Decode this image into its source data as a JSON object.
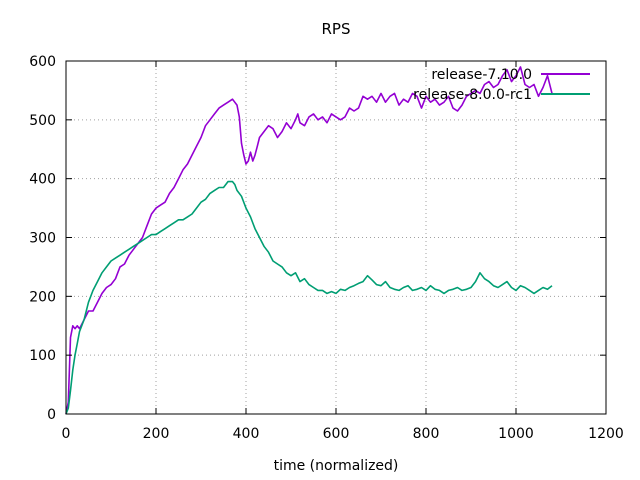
{
  "chart_data": {
    "type": "line",
    "title": "RPS",
    "xlabel": "time (normalized)",
    "ylabel": "",
    "xlim": [
      0,
      1200
    ],
    "ylim": [
      0,
      600
    ],
    "xticks": [
      0,
      200,
      400,
      600,
      800,
      1000,
      1200
    ],
    "yticks": [
      0,
      100,
      200,
      300,
      400,
      500,
      600
    ],
    "grid": true,
    "legend_position": "top-right",
    "series": [
      {
        "name": "release-7.10.0",
        "color": "#9400d3",
        "points": [
          [
            0,
            0
          ],
          [
            5,
            20
          ],
          [
            10,
            130
          ],
          [
            15,
            150
          ],
          [
            20,
            145
          ],
          [
            25,
            150
          ],
          [
            30,
            145
          ],
          [
            40,
            160
          ],
          [
            50,
            175
          ],
          [
            60,
            175
          ],
          [
            70,
            190
          ],
          [
            80,
            205
          ],
          [
            90,
            215
          ],
          [
            100,
            220
          ],
          [
            110,
            230
          ],
          [
            120,
            250
          ],
          [
            130,
            255
          ],
          [
            140,
            270
          ],
          [
            150,
            280
          ],
          [
            160,
            290
          ],
          [
            170,
            300
          ],
          [
            180,
            320
          ],
          [
            190,
            340
          ],
          [
            200,
            350
          ],
          [
            210,
            355
          ],
          [
            220,
            360
          ],
          [
            230,
            375
          ],
          [
            240,
            385
          ],
          [
            250,
            400
          ],
          [
            260,
            415
          ],
          [
            270,
            425
          ],
          [
            280,
            440
          ],
          [
            290,
            455
          ],
          [
            300,
            470
          ],
          [
            310,
            490
          ],
          [
            320,
            500
          ],
          [
            330,
            510
          ],
          [
            340,
            520
          ],
          [
            350,
            525
          ],
          [
            360,
            530
          ],
          [
            370,
            535
          ],
          [
            380,
            525
          ],
          [
            385,
            505
          ],
          [
            390,
            460
          ],
          [
            395,
            440
          ],
          [
            400,
            425
          ],
          [
            405,
            430
          ],
          [
            410,
            445
          ],
          [
            415,
            430
          ],
          [
            420,
            440
          ],
          [
            425,
            455
          ],
          [
            430,
            470
          ],
          [
            440,
            480
          ],
          [
            450,
            490
          ],
          [
            460,
            485
          ],
          [
            470,
            470
          ],
          [
            480,
            480
          ],
          [
            490,
            495
          ],
          [
            500,
            485
          ],
          [
            510,
            500
          ],
          [
            515,
            510
          ],
          [
            520,
            495
          ],
          [
            530,
            490
          ],
          [
            540,
            505
          ],
          [
            550,
            510
          ],
          [
            560,
            500
          ],
          [
            570,
            505
          ],
          [
            580,
            495
          ],
          [
            590,
            510
          ],
          [
            600,
            505
          ],
          [
            610,
            500
          ],
          [
            620,
            505
          ],
          [
            630,
            520
          ],
          [
            640,
            515
          ],
          [
            650,
            520
          ],
          [
            660,
            540
          ],
          [
            670,
            535
          ],
          [
            680,
            540
          ],
          [
            690,
            530
          ],
          [
            700,
            545
          ],
          [
            710,
            530
          ],
          [
            720,
            540
          ],
          [
            730,
            545
          ],
          [
            740,
            525
          ],
          [
            750,
            535
          ],
          [
            760,
            530
          ],
          [
            770,
            545
          ],
          [
            780,
            540
          ],
          [
            790,
            520
          ],
          [
            800,
            540
          ],
          [
            810,
            530
          ],
          [
            820,
            535
          ],
          [
            830,
            525
          ],
          [
            840,
            530
          ],
          [
            850,
            540
          ],
          [
            860,
            520
          ],
          [
            870,
            515
          ],
          [
            880,
            525
          ],
          [
            890,
            540
          ],
          [
            900,
            545
          ],
          [
            910,
            550
          ],
          [
            920,
            545
          ],
          [
            930,
            560
          ],
          [
            940,
            565
          ],
          [
            950,
            555
          ],
          [
            960,
            560
          ],
          [
            970,
            575
          ],
          [
            980,
            585
          ],
          [
            990,
            565
          ],
          [
            1000,
            575
          ],
          [
            1010,
            590
          ],
          [
            1020,
            560
          ],
          [
            1030,
            555
          ],
          [
            1040,
            560
          ],
          [
            1050,
            540
          ],
          [
            1060,
            555
          ],
          [
            1070,
            575
          ],
          [
            1080,
            545
          ]
        ]
      },
      {
        "name": "release-8.0.0-rc1",
        "color": "#009e73",
        "points": [
          [
            0,
            0
          ],
          [
            5,
            10
          ],
          [
            10,
            40
          ],
          [
            15,
            75
          ],
          [
            20,
            100
          ],
          [
            25,
            120
          ],
          [
            30,
            140
          ],
          [
            40,
            160
          ],
          [
            50,
            190
          ],
          [
            60,
            210
          ],
          [
            70,
            225
          ],
          [
            80,
            240
          ],
          [
            90,
            250
          ],
          [
            100,
            260
          ],
          [
            110,
            265
          ],
          [
            120,
            270
          ],
          [
            130,
            275
          ],
          [
            140,
            280
          ],
          [
            150,
            285
          ],
          [
            160,
            290
          ],
          [
            170,
            295
          ],
          [
            180,
            300
          ],
          [
            190,
            305
          ],
          [
            200,
            305
          ],
          [
            210,
            310
          ],
          [
            220,
            315
          ],
          [
            230,
            320
          ],
          [
            240,
            325
          ],
          [
            250,
            330
          ],
          [
            260,
            330
          ],
          [
            270,
            335
          ],
          [
            280,
            340
          ],
          [
            290,
            350
          ],
          [
            300,
            360
          ],
          [
            310,
            365
          ],
          [
            320,
            375
          ],
          [
            330,
            380
          ],
          [
            340,
            385
          ],
          [
            350,
            385
          ],
          [
            360,
            395
          ],
          [
            370,
            395
          ],
          [
            375,
            390
          ],
          [
            380,
            380
          ],
          [
            390,
            370
          ],
          [
            400,
            350
          ],
          [
            410,
            335
          ],
          [
            420,
            315
          ],
          [
            430,
            300
          ],
          [
            440,
            285
          ],
          [
            450,
            275
          ],
          [
            460,
            260
          ],
          [
            470,
            255
          ],
          [
            480,
            250
          ],
          [
            490,
            240
          ],
          [
            500,
            235
          ],
          [
            510,
            240
          ],
          [
            520,
            225
          ],
          [
            530,
            230
          ],
          [
            540,
            220
          ],
          [
            550,
            215
          ],
          [
            560,
            210
          ],
          [
            570,
            210
          ],
          [
            580,
            205
          ],
          [
            590,
            208
          ],
          [
            600,
            205
          ],
          [
            610,
            212
          ],
          [
            620,
            210
          ],
          [
            630,
            215
          ],
          [
            640,
            218
          ],
          [
            650,
            222
          ],
          [
            660,
            225
          ],
          [
            670,
            235
          ],
          [
            680,
            228
          ],
          [
            690,
            220
          ],
          [
            700,
            218
          ],
          [
            710,
            225
          ],
          [
            720,
            215
          ],
          [
            730,
            212
          ],
          [
            740,
            210
          ],
          [
            750,
            215
          ],
          [
            760,
            218
          ],
          [
            770,
            210
          ],
          [
            780,
            212
          ],
          [
            790,
            215
          ],
          [
            800,
            210
          ],
          [
            810,
            218
          ],
          [
            820,
            212
          ],
          [
            830,
            210
          ],
          [
            840,
            205
          ],
          [
            850,
            210
          ],
          [
            860,
            212
          ],
          [
            870,
            215
          ],
          [
            880,
            210
          ],
          [
            890,
            212
          ],
          [
            900,
            215
          ],
          [
            910,
            225
          ],
          [
            920,
            240
          ],
          [
            930,
            230
          ],
          [
            940,
            225
          ],
          [
            950,
            218
          ],
          [
            960,
            215
          ],
          [
            970,
            220
          ],
          [
            980,
            225
          ],
          [
            990,
            215
          ],
          [
            1000,
            210
          ],
          [
            1010,
            218
          ],
          [
            1020,
            215
          ],
          [
            1030,
            210
          ],
          [
            1040,
            205
          ],
          [
            1050,
            210
          ],
          [
            1060,
            215
          ],
          [
            1070,
            212
          ],
          [
            1080,
            218
          ]
        ]
      }
    ]
  }
}
